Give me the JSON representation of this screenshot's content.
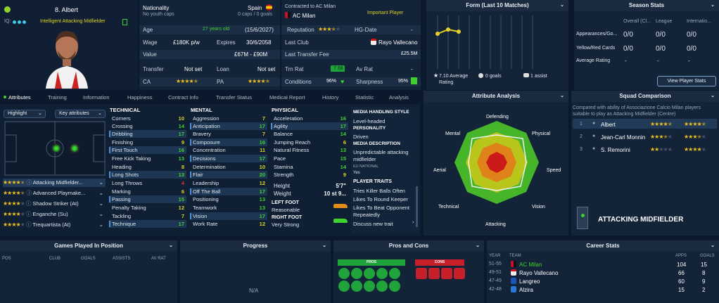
{
  "player": {
    "number_name": "8. Albert",
    "iq_label": "IQ:",
    "role_label": "Intelligent Attacking Midfielder",
    "nationality_label": "Nationality",
    "nationality_value": "Spain",
    "youth_caps": "No youth caps",
    "caps_goals": "0 caps / 0 goals",
    "contract_label": "Contracted to AC Milan",
    "club": "AC Milan",
    "squad_status": "Important Player",
    "age_label": "Age",
    "age_value": "27 years old",
    "dob": "(15/6/2027)",
    "reputation_label": "Reputation",
    "hg_label": "HG-Date",
    "hg_value": "-",
    "wage_label": "Wage",
    "wage_value": "£180K p/w",
    "expires_label": "Expires",
    "expires_value": "30/6/2058",
    "last_club_label": "Last Club",
    "last_club_value": "Rayo Vallecano",
    "value_label": "Value",
    "value_value": "£67M - £90M",
    "last_fee_label": "Last Transfer Fee",
    "last_fee_value": "£25.5M",
    "transfer_label": "Transfer",
    "transfer_value": "Not set",
    "loan_label": "Loan",
    "loan_value": "Not set",
    "trn_label": "Trn Rat",
    "trn_value": "7.68",
    "avrat_label": "Av Rat",
    "avrat_value": "-",
    "ca_label": "CA",
    "pa_label": "PA",
    "conditions_label": "Conditions",
    "conditions_value": "96%",
    "sharpness_label": "Sharpness",
    "sharpness_value": "95%"
  },
  "form": {
    "title": "Form (Last 10 Matches)",
    "avg": "7.10 Average Rating",
    "goals": "0 goals",
    "assists": "1 assist"
  },
  "season": {
    "title": "Season Stats",
    "cols": [
      "Overall (Cl...",
      "League",
      "Internatio..."
    ],
    "rows": [
      {
        "label": "Appearances/Go...",
        "vals": [
          "0/0",
          "0/0",
          "0/0"
        ]
      },
      {
        "label": "Yellow/Red Cards",
        "vals": [
          "0/0",
          "0/0",
          "0/0"
        ]
      },
      {
        "label": "Average Rating",
        "vals": [
          "-",
          "-",
          "-"
        ]
      }
    ],
    "button": "View Player Stats"
  },
  "tabs": [
    "Attributes",
    "Training",
    "Information",
    "Happiness",
    "Contract Info",
    "Transfer Status",
    "Medical Report",
    "History",
    "Statistic",
    "Analysis"
  ],
  "left": {
    "highlight": "Highlight",
    "key_attrs": "Key attributes",
    "roles": [
      {
        "name": "Attacking Midfielder..."
      },
      {
        "name": "Advanced Playmake..."
      },
      {
        "name": "Shadow Striker (At)"
      },
      {
        "name": "Enganche (Su)"
      },
      {
        "name": "Trequartista (At)"
      }
    ]
  },
  "technical": {
    "title": "TECHNICAL",
    "items": [
      {
        "n": "Corners",
        "v": "10"
      },
      {
        "n": "Crossing",
        "v": "14"
      },
      {
        "n": "Dribbling",
        "v": "17"
      },
      {
        "n": "Finishing",
        "v": "9"
      },
      {
        "n": "First Touch",
        "v": "16"
      },
      {
        "n": "Free Kick Taking",
        "v": "13"
      },
      {
        "n": "Heading",
        "v": "8"
      },
      {
        "n": "Long Shots",
        "v": "13"
      },
      {
        "n": "Long Throws",
        "v": "4"
      },
      {
        "n": "Marking",
        "v": "6"
      },
      {
        "n": "Passing",
        "v": "15"
      },
      {
        "n": "Penalty Taking",
        "v": "12"
      },
      {
        "n": "Tackling",
        "v": "7"
      },
      {
        "n": "Technique",
        "v": "17"
      }
    ]
  },
  "mental": {
    "title": "MENTAL",
    "items": [
      {
        "n": "Aggression",
        "v": "7"
      },
      {
        "n": "Anticipation",
        "v": "17"
      },
      {
        "n": "Bravery",
        "v": "7"
      },
      {
        "n": "Composure",
        "v": "16"
      },
      {
        "n": "Concentration",
        "v": "11"
      },
      {
        "n": "Decisions",
        "v": "17"
      },
      {
        "n": "Determination",
        "v": "10"
      },
      {
        "n": "Flair",
        "v": "20"
      },
      {
        "n": "Leadership",
        "v": "12"
      },
      {
        "n": "Off The Ball",
        "v": "17"
      },
      {
        "n": "Positioning",
        "v": "13"
      },
      {
        "n": "Teamwork",
        "v": "13"
      },
      {
        "n": "Vision",
        "v": "17"
      },
      {
        "n": "Work Rate",
        "v": "12"
      }
    ]
  },
  "physical": {
    "title": "PHYSICAL",
    "items": [
      {
        "n": "Acceleration",
        "v": "16"
      },
      {
        "n": "Agility",
        "v": "17"
      },
      {
        "n": "Balance",
        "v": "14"
      },
      {
        "n": "Jumping Reach",
        "v": "6"
      },
      {
        "n": "Natural Fitness",
        "v": "13"
      },
      {
        "n": "Pace",
        "v": "15"
      },
      {
        "n": "Stamina",
        "v": "14"
      },
      {
        "n": "Strength",
        "v": "9"
      }
    ],
    "height_label": "Height",
    "height_value": "5'7\"",
    "weight_label": "Weight",
    "weight_value": "10 st 9...",
    "left_foot_label": "LEFT FOOT",
    "left_foot_value": "Reasonable",
    "right_foot_label": "RIGHT FOOT",
    "right_foot_value": "Very Strong"
  },
  "media": {
    "style_title": "MEDIA HANDLING STYLE",
    "style_value": "Level-headed",
    "personality_title": "PERSONALITY",
    "personality_value": "Driven",
    "desc_title": "MEDIA DESCRIPTION",
    "desc_value": "Unpredictable attacking midfielder",
    "eu_title": "EU NATIONAL",
    "eu_value": "Yes",
    "traits_title": "PLAYER TRAITS",
    "traits": [
      "Tries Killer Balls Often",
      "Likes To Round Keeper",
      "Likes To Beat Opponent Repeatedly"
    ],
    "discuss": "Discuss new trait"
  },
  "analysis": {
    "title": "Attribute Analysis",
    "labels": [
      "Defending",
      "Physical",
      "Speed",
      "Vision",
      "Attacking",
      "Technical",
      "Aerial",
      "Mental"
    ]
  },
  "squad": {
    "title": "Squad Comparison",
    "desc": "Compared with ability of Associazione Calcio Milan players suitable to play as Attacking Midfielder (Centre)",
    "rows": [
      {
        "rank": "1",
        "name": "Albert"
      },
      {
        "rank": "2",
        "name": "Jean-Carl Monnin"
      },
      {
        "rank": "3",
        "name": "S. Remorini"
      }
    ],
    "position": "ATTACKING MIDFIELDER"
  },
  "bottom": {
    "games_title": "Games Played In Position",
    "games_cols": [
      "POS",
      "CLUB",
      "GOALS",
      "ASSISTS",
      "AV RAT"
    ],
    "progress_title": "Progress",
    "progress_value": "N/A",
    "pros_cons_title": "Pros and Cons",
    "pros_label": "PROS",
    "cons_label": "CONS",
    "career_title": "Career Stats",
    "career_cols": [
      "YEAR",
      "TEAM",
      "APPS",
      "GOALS"
    ],
    "career_rows": [
      {
        "year": "51-55",
        "team": "AC Milan",
        "apps": "104",
        "goals": "15"
      },
      {
        "year": "49-51",
        "team": "Rayo Vallecano",
        "apps": "66",
        "goals": "8"
      },
      {
        "year": "47-49",
        "team": "Langreo",
        "apps": "60",
        "goals": "9"
      },
      {
        "year": "42-48",
        "team": "Alzira",
        "apps": "15",
        "goals": "2"
      }
    ]
  },
  "colors": {
    "accent": "#41d12f",
    "bg": "#0a1a2c",
    "panel": "#132338"
  }
}
